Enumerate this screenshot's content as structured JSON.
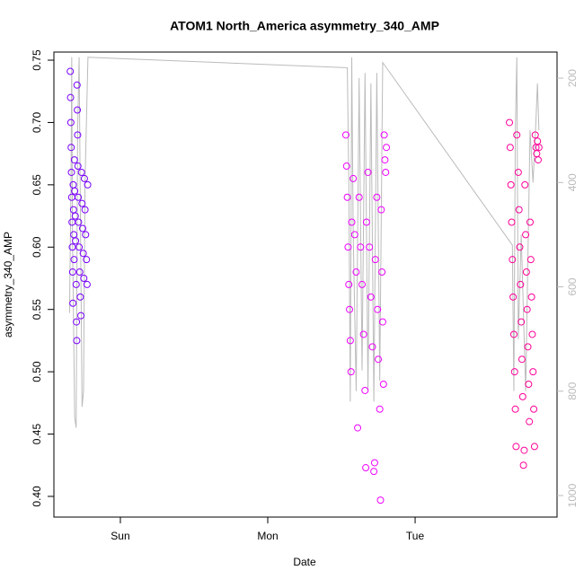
{
  "chart_data": {
    "type": "scatter",
    "title": "ATOM1 North_America asymmetry_340_AMP",
    "x_label": "Date",
    "y_label": "asymmetry_340_AMP",
    "xlim": [
      -0.451,
      2.963
    ],
    "xticks": [
      {
        "value": 0,
        "label": "Sun"
      },
      {
        "value": 1,
        "label": "Mon"
      },
      {
        "value": 2,
        "label": "Tue"
      }
    ],
    "ylim": [
      0.3834,
      0.7565
    ],
    "yticks": [
      {
        "value": 0.4,
        "label": "0.40"
      },
      0.45,
      {
        "value": 0.5,
        "label": "0.50"
      },
      0.55,
      {
        "value": 0.6,
        "label": "0.60"
      },
      0.65,
      {
        "value": 0.7,
        "label": "0.70"
      },
      0.75
    ],
    "y2lim": [
      1041.3,
      150
    ],
    "y2ticks": [
      200,
      400,
      600,
      800,
      1000
    ],
    "series": [
      {
        "color": "#7a00ff",
        "x": [
          -0.34,
          -0.338,
          -0.336,
          -0.334,
          -0.332,
          -0.33,
          -0.328,
          -0.326,
          -0.324,
          -0.322,
          -0.32,
          -0.318,
          -0.316,
          -0.314,
          -0.312,
          -0.31,
          -0.306,
          -0.304,
          -0.3,
          -0.298,
          -0.296,
          -0.294,
          -0.292,
          -0.29,
          -0.288,
          -0.286,
          -0.284,
          -0.28,
          -0.276,
          -0.272,
          -0.268,
          -0.264,
          -0.26,
          -0.256,
          -0.252,
          -0.248,
          -0.244,
          -0.24,
          -0.236,
          -0.23,
          -0.226,
          -0.222
        ],
        "values": [
          0.741,
          0.72,
          0.7,
          0.68,
          0.66,
          0.64,
          0.62,
          0.6,
          0.58,
          0.555,
          0.65,
          0.63,
          0.61,
          0.59,
          0.67,
          0.645,
          0.625,
          0.605,
          0.57,
          0.54,
          0.525,
          0.73,
          0.71,
          0.69,
          0.665,
          0.64,
          0.62,
          0.6,
          0.58,
          0.56,
          0.545,
          0.66,
          0.635,
          0.615,
          0.595,
          0.575,
          0.655,
          0.63,
          0.61,
          0.59,
          0.57,
          0.65
        ]
      },
      {
        "color": "#ee00ff",
        "x": [
          1.53,
          1.535,
          1.54,
          1.545,
          1.55,
          1.555,
          1.56,
          1.565,
          1.57,
          1.58,
          1.59,
          1.6,
          1.61,
          1.62,
          1.63,
          1.64,
          1.65,
          1.66,
          1.665,
          1.67,
          1.68,
          1.69,
          1.7,
          1.71,
          1.72,
          1.725,
          1.73,
          1.74,
          1.745,
          1.75,
          1.76,
          1.765,
          1.77,
          1.775,
          1.78,
          1.785,
          1.79,
          1.795,
          1.8,
          1.805
        ],
        "values": [
          0.69,
          0.665,
          0.64,
          0.6,
          0.57,
          0.55,
          0.525,
          0.5,
          0.62,
          0.655,
          0.61,
          0.58,
          0.455,
          0.64,
          0.6,
          0.57,
          0.53,
          0.485,
          0.423,
          0.62,
          0.66,
          0.6,
          0.56,
          0.52,
          0.42,
          0.427,
          0.59,
          0.64,
          0.55,
          0.51,
          0.47,
          0.397,
          0.63,
          0.58,
          0.54,
          0.49,
          0.69,
          0.67,
          0.66,
          0.68
        ]
      },
      {
        "color": "#ff0099",
        "x": [
          2.64,
          2.645,
          2.65,
          2.655,
          2.66,
          2.665,
          2.67,
          2.675,
          2.68,
          2.685,
          2.69,
          2.7,
          2.705,
          2.71,
          2.715,
          2.72,
          2.725,
          2.73,
          2.735,
          2.74,
          2.745,
          2.75,
          2.755,
          2.76,
          2.765,
          2.77,
          2.775,
          2.78,
          2.785,
          2.79,
          2.795,
          2.8,
          2.805,
          2.81,
          2.815,
          2.82,
          2.825,
          2.83,
          2.835,
          2.84
        ],
        "values": [
          0.7,
          0.68,
          0.65,
          0.62,
          0.59,
          0.56,
          0.53,
          0.5,
          0.47,
          0.44,
          0.69,
          0.66,
          0.63,
          0.6,
          0.57,
          0.54,
          0.51,
          0.48,
          0.425,
          0.437,
          0.65,
          0.61,
          0.58,
          0.55,
          0.52,
          0.49,
          0.46,
          0.62,
          0.59,
          0.56,
          0.53,
          0.5,
          0.47,
          0.44,
          0.69,
          0.68,
          0.675,
          0.685,
          0.67,
          0.68
        ]
      },
      {
        "type": "line",
        "axis": "y2",
        "color": "#bbbbbb",
        "x": [
          -0.345,
          -0.335,
          -0.33,
          -0.325,
          -0.31,
          -0.3,
          -0.29,
          -0.28,
          -0.27,
          -0.26,
          -0.25,
          -0.24,
          -0.22,
          1.54,
          1.55,
          1.56,
          1.57,
          1.58,
          1.6,
          1.62,
          1.64,
          1.66,
          1.68,
          1.7,
          1.72,
          1.74,
          1.76,
          1.78,
          2.66,
          2.67,
          2.68,
          2.69,
          2.7,
          2.72,
          2.75,
          2.78,
          2.8,
          2.82,
          2.83,
          2.84
        ],
        "values": [
          650,
          400,
          160,
          500,
          850,
          870,
          300,
          160,
          500,
          830,
          800,
          400,
          160,
          180,
          400,
          820,
          160,
          500,
          800,
          200,
          760,
          190,
          800,
          210,
          820,
          190,
          780,
          170,
          520,
          800,
          300,
          160,
          700,
          500,
          800,
          300,
          400,
          280,
          210,
          300
        ]
      }
    ]
  }
}
